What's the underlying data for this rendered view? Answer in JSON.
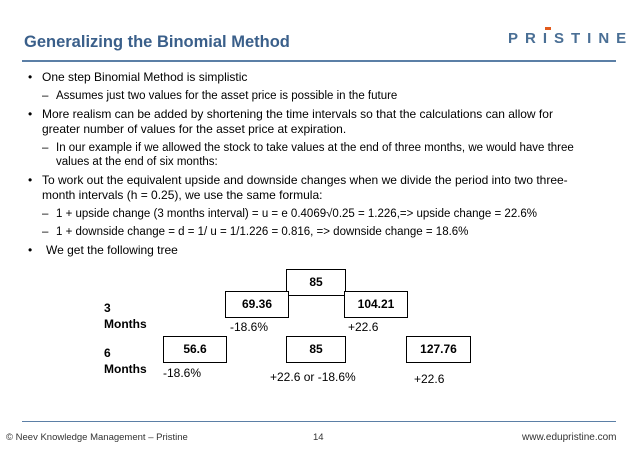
{
  "header": {
    "title": "Generalizing the Binomial Method",
    "logo": {
      "p1": "PR",
      "i": "I",
      "p2": "STINE"
    }
  },
  "content": {
    "b1": "One step Binomial Method is simplistic",
    "b1_sub": "Assumes just two values for the asset price is possible in the future",
    "b2_l1": "More realism can be added by shortening the time intervals so that the calculations can allow for",
    "b2_l2": "greater number of values for the asset price at expiration.",
    "b2_sub_l1": "In our example if we allowed the stock to take values at the end of three months, we would have three",
    "b2_sub_l2": "values at the end of six months:",
    "b3_l1": "To work out the equivalent upside and downside changes when we divide the period into two three-",
    "b3_l2": "month intervals (h = 0.25), we use the same formula:",
    "b3_sub1": "1 + upside change (3 months interval) = u = e 0.4069√0.25 = 1.226,=> upside change = 22.6%",
    "b3_sub2": "1 + downside change = d = 1/ u = 1/1.226 = 0.816, => downside change = 18.6%",
    "b4": "We get the following tree",
    "bullet": "•",
    "dash": "–"
  },
  "tree": {
    "row3_l1": "3",
    "row3_l2": "Months",
    "row6_l1": "6",
    "row6_l2": "Months",
    "root": "85",
    "down1": "69.36",
    "up1": "104.21",
    "down2": "56.6",
    "mid2": "85",
    "up2": "127.76",
    "lbl_down1": "-18.6%",
    "lbl_up1": "+22.6",
    "lbl_down2": "-18.6%",
    "lbl_mid2": "+22.6 or -18.6%",
    "lbl_up2": "+22.6"
  },
  "footer": {
    "left": "© Neev Knowledge Management – Pristine",
    "page": "14",
    "right": "www.edupristine.com"
  }
}
